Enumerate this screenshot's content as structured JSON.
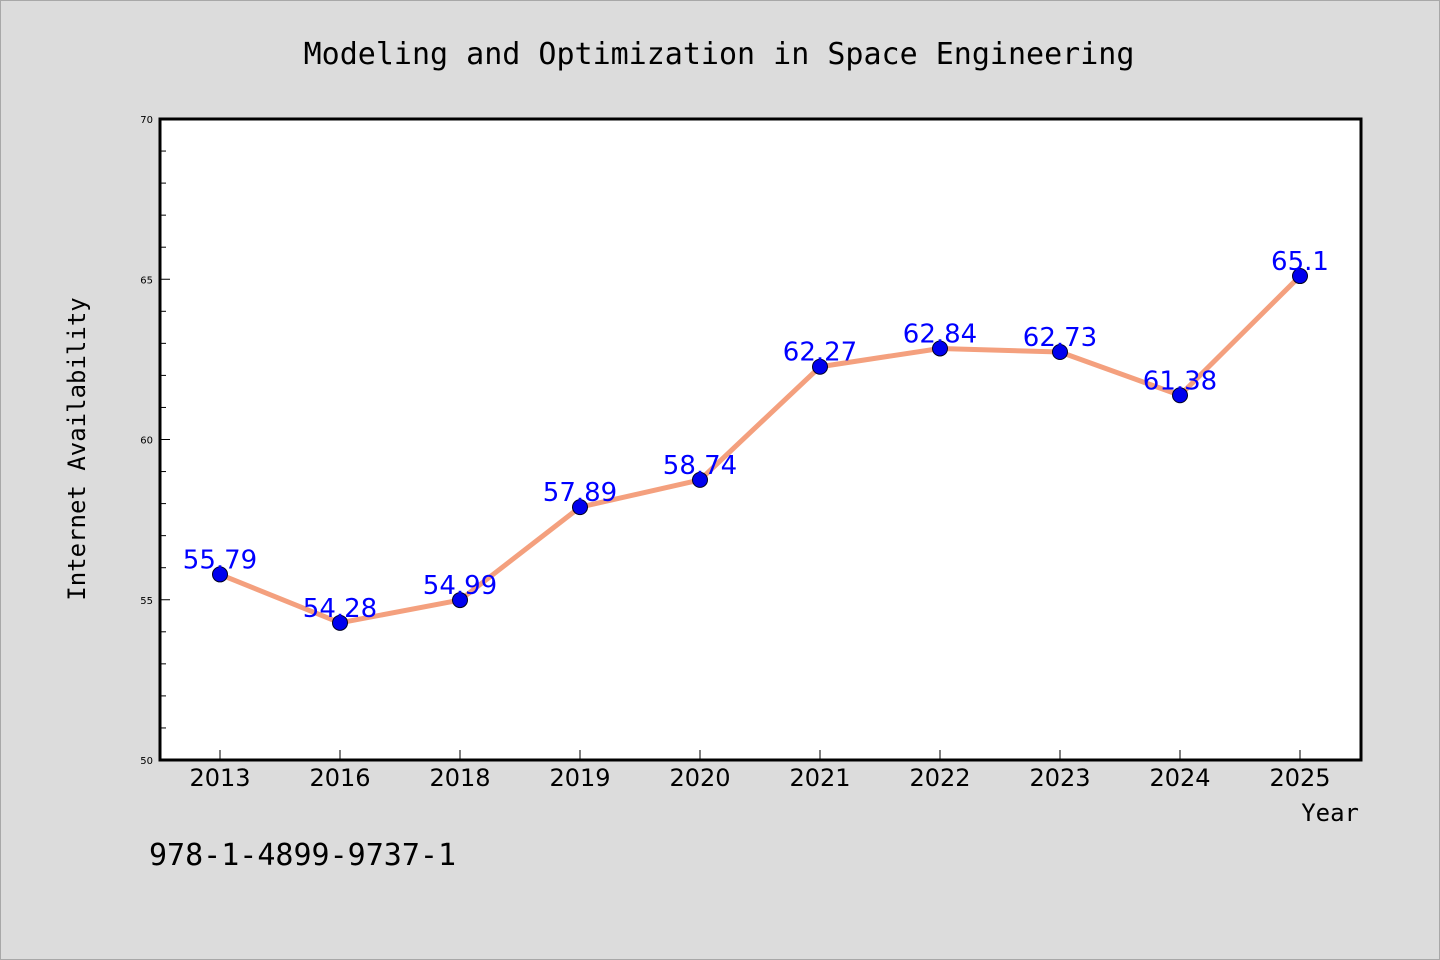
{
  "chart_data": {
    "type": "line",
    "title": "Modeling and Optimization in Space Engineering",
    "xlabel": "Year",
    "ylabel": "Internet Availability",
    "categories": [
      "2013",
      "2016",
      "2018",
      "2019",
      "2020",
      "2021",
      "2022",
      "2023",
      "2024",
      "2025"
    ],
    "series": [
      {
        "values": [
          55.79,
          54.28,
          54.99,
          57.89,
          58.74,
          62.27,
          62.84,
          62.73,
          61.38,
          65.1
        ],
        "labels": [
          "55.79",
          "54.28",
          "54.99",
          "57.89",
          "58.74",
          "62.27",
          "62.84",
          "62.73",
          "61.38",
          "65.1"
        ],
        "line_color": "#f4a07e",
        "marker_color": "#0000ee",
        "label_color": "#0000ff"
      }
    ],
    "ylim": [
      50,
      70
    ],
    "yticks": [
      "50",
      "55",
      "60",
      "65",
      "70"
    ],
    "grid": false,
    "legend": "none"
  },
  "annotation": "978-1-4899-9737-1",
  "colors": {
    "figure_background": "#dcdcdc",
    "plot_background": "#ffffff",
    "axes": "#000000"
  }
}
